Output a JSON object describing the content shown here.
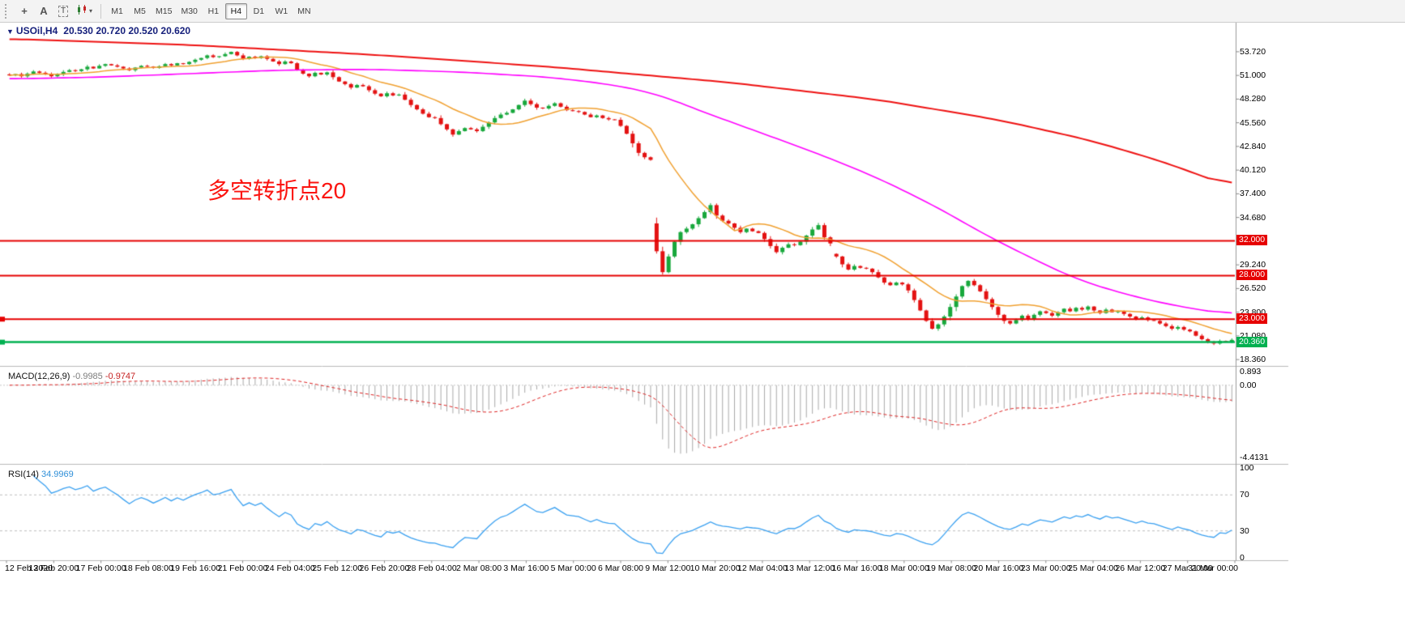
{
  "toolbar": {
    "tools": {
      "crosshair": "+",
      "annotate_label": "A",
      "text_label": "T",
      "caret": "▾"
    },
    "timeframes": [
      "M1",
      "M5",
      "M15",
      "M30",
      "H1",
      "H4",
      "D1",
      "W1",
      "MN"
    ],
    "active_timeframe": "H4"
  },
  "chart_data": {
    "type": "candlestick",
    "symbol": "USOil",
    "timeframe": "H4",
    "collapse_glyph": "▼",
    "title": "USOil,H4",
    "ohlc_display": "20.530 20.720 20.520 20.620",
    "annotation": "多空转折点20",
    "up_color": "#18a83c",
    "down_color": "#e31212",
    "y_range": {
      "min": 18.0,
      "max": 56.5
    },
    "y_ticks": [
      53.72,
      51.0,
      48.28,
      45.56,
      42.84,
      40.12,
      37.4,
      34.68,
      31.96,
      29.24,
      26.52,
      23.8,
      21.08,
      18.36
    ],
    "x_labels": [
      "12 Feb 2020",
      "13 Feb 20:00",
      "17 Feb 00:00",
      "18 Feb 08:00",
      "19 Feb 16:00",
      "21 Feb 00:00",
      "24 Feb 04:00",
      "25 Feb 12:00",
      "26 Feb 20:00",
      "28 Feb 04:00",
      "2 Mar 08:00",
      "3 Mar 16:00",
      "5 Mar 00:00",
      "6 Mar 08:00",
      "9 Mar 12:00",
      "10 Mar 20:00",
      "12 Mar 04:00",
      "13 Mar 12:00",
      "16 Mar 16:00",
      "18 Mar 00:00",
      "19 Mar 08:00",
      "20 Mar 16:00",
      "23 Mar 00:00",
      "25 Mar 04:00",
      "26 Mar 12:00",
      "27 Mar 20:00",
      "31 Mar 00:00"
    ],
    "closes": [
      51.0,
      51.15,
      50.9,
      51.2,
      51.45,
      51.3,
      51.15,
      50.9,
      51.1,
      51.4,
      51.6,
      51.5,
      51.7,
      52.0,
      51.8,
      52.1,
      52.3,
      52.15,
      52.0,
      51.8,
      51.6,
      51.9,
      52.1,
      52.0,
      51.85,
      52.05,
      52.3,
      52.15,
      52.4,
      52.3,
      52.55,
      52.8,
      53.0,
      53.3,
      53.1,
      53.2,
      53.45,
      53.7,
      53.3,
      52.9,
      53.15,
      53.0,
      53.2,
      52.9,
      52.6,
      52.3,
      52.6,
      52.4,
      51.6,
      51.2,
      50.9,
      51.3,
      51.1,
      51.35,
      50.8,
      50.3,
      50.0,
      49.6,
      49.9,
      49.75,
      49.3,
      48.9,
      48.6,
      48.95,
      48.7,
      48.8,
      48.2,
      47.6,
      47.1,
      46.6,
      46.2,
      46.1,
      45.4,
      44.8,
      44.2,
      44.6,
      44.95,
      44.8,
      44.6,
      45.1,
      45.6,
      46.1,
      46.5,
      46.7,
      47.1,
      47.6,
      48.1,
      47.7,
      47.3,
      47.2,
      47.5,
      47.8,
      47.4,
      47.0,
      46.9,
      46.8,
      46.5,
      46.2,
      46.4,
      46.1,
      45.95,
      45.9,
      45.2,
      44.3,
      43.2,
      42.1,
      41.6,
      41.3,
      30.8,
      28.4,
      30.2,
      31.9,
      33.0,
      33.4,
      33.9,
      34.6,
      35.3,
      36.1,
      34.9,
      34.3,
      34.0,
      33.5,
      33.0,
      33.4,
      33.1,
      32.9,
      32.2,
      31.4,
      30.7,
      31.2,
      31.6,
      31.5,
      31.9,
      32.6,
      33.3,
      33.8,
      32.4,
      31.7,
      30.2,
      29.3,
      28.7,
      29.1,
      28.9,
      28.8,
      28.4,
      27.8,
      27.2,
      26.9,
      27.2,
      27.0,
      26.3,
      25.2,
      24.0,
      22.8,
      21.9,
      22.4,
      23.3,
      24.4,
      25.6,
      26.8,
      27.4,
      26.9,
      26.2,
      25.3,
      24.4,
      23.5,
      22.8,
      22.5,
      22.9,
      23.4,
      23.0,
      23.5,
      23.9,
      23.7,
      23.4,
      23.8,
      24.2,
      23.9,
      24.3,
      24.1,
      24.45,
      24.0,
      23.7,
      24.1,
      23.8,
      23.9,
      23.6,
      23.3,
      23.0,
      23.2,
      22.9,
      22.8,
      22.5,
      22.2,
      21.9,
      22.1,
      21.8,
      21.6,
      21.1,
      20.7,
      20.4,
      20.2,
      20.5,
      20.4,
      20.62
    ],
    "open_overrides": {
      "108": 34.0,
      "138": 30.5
    },
    "horizontal_lines": [
      {
        "value": 32.0,
        "label": "32.000",
        "color": "#e60000",
        "width": 2,
        "handle": false
      },
      {
        "value": 28.0,
        "label": "28.000",
        "color": "#e60000",
        "width": 2,
        "handle": false
      },
      {
        "value": 23.0,
        "label": "23.000",
        "color": "#e60000",
        "width": 2,
        "handle": true
      },
      {
        "value": 20.36,
        "label": "20.360",
        "color": "#00b050",
        "width": 2.5,
        "handle": true
      }
    ],
    "overlays": {
      "orange": {
        "period": 14,
        "color": "#f0a030"
      },
      "magenta": {
        "color": "#ff00ff",
        "points": [
          [
            0,
            50.6
          ],
          [
            15,
            50.8
          ],
          [
            30,
            51.2
          ],
          [
            45,
            51.6
          ],
          [
            60,
            51.7
          ],
          [
            75,
            51.4
          ],
          [
            90,
            50.8
          ],
          [
            100,
            50.0
          ],
          [
            108,
            48.9
          ],
          [
            115,
            47.0
          ],
          [
            125,
            44.5
          ],
          [
            135,
            42.0
          ],
          [
            145,
            39.2
          ],
          [
            155,
            35.8
          ],
          [
            162,
            33.0
          ],
          [
            170,
            30.2
          ],
          [
            178,
            27.6
          ],
          [
            186,
            25.9
          ],
          [
            194,
            24.6
          ],
          [
            204,
            23.5
          ]
        ]
      },
      "red": {
        "color": "#ee1111",
        "points": [
          [
            0,
            55.2
          ],
          [
            30,
            54.5
          ],
          [
            60,
            53.4
          ],
          [
            90,
            52.0
          ],
          [
            120,
            50.2
          ],
          [
            145,
            48.2
          ],
          [
            165,
            45.9
          ],
          [
            180,
            43.6
          ],
          [
            192,
            41.2
          ],
          [
            204,
            38.2
          ]
        ]
      }
    },
    "indicators": {
      "macd": {
        "name": "MACD(12,26,9)",
        "value_main": "-0.9985",
        "value_signal": "-0.9747",
        "fast": 12,
        "slow": 26,
        "signal": 9,
        "axis_max": 0.893,
        "axis_min": -4.4131,
        "axis_labels": [
          "0.893",
          "0.00",
          "-4.4131"
        ],
        "histogram_color": "#a9a9a9",
        "signal_color": "#dd2222"
      },
      "rsi": {
        "name": "RSI(14)",
        "value": "34.9969",
        "period": 14,
        "levels": [
          70,
          30
        ],
        "axis_labels": [
          "100",
          "70",
          "30",
          "0"
        ],
        "line_color": "#3aa0f0"
      }
    }
  }
}
